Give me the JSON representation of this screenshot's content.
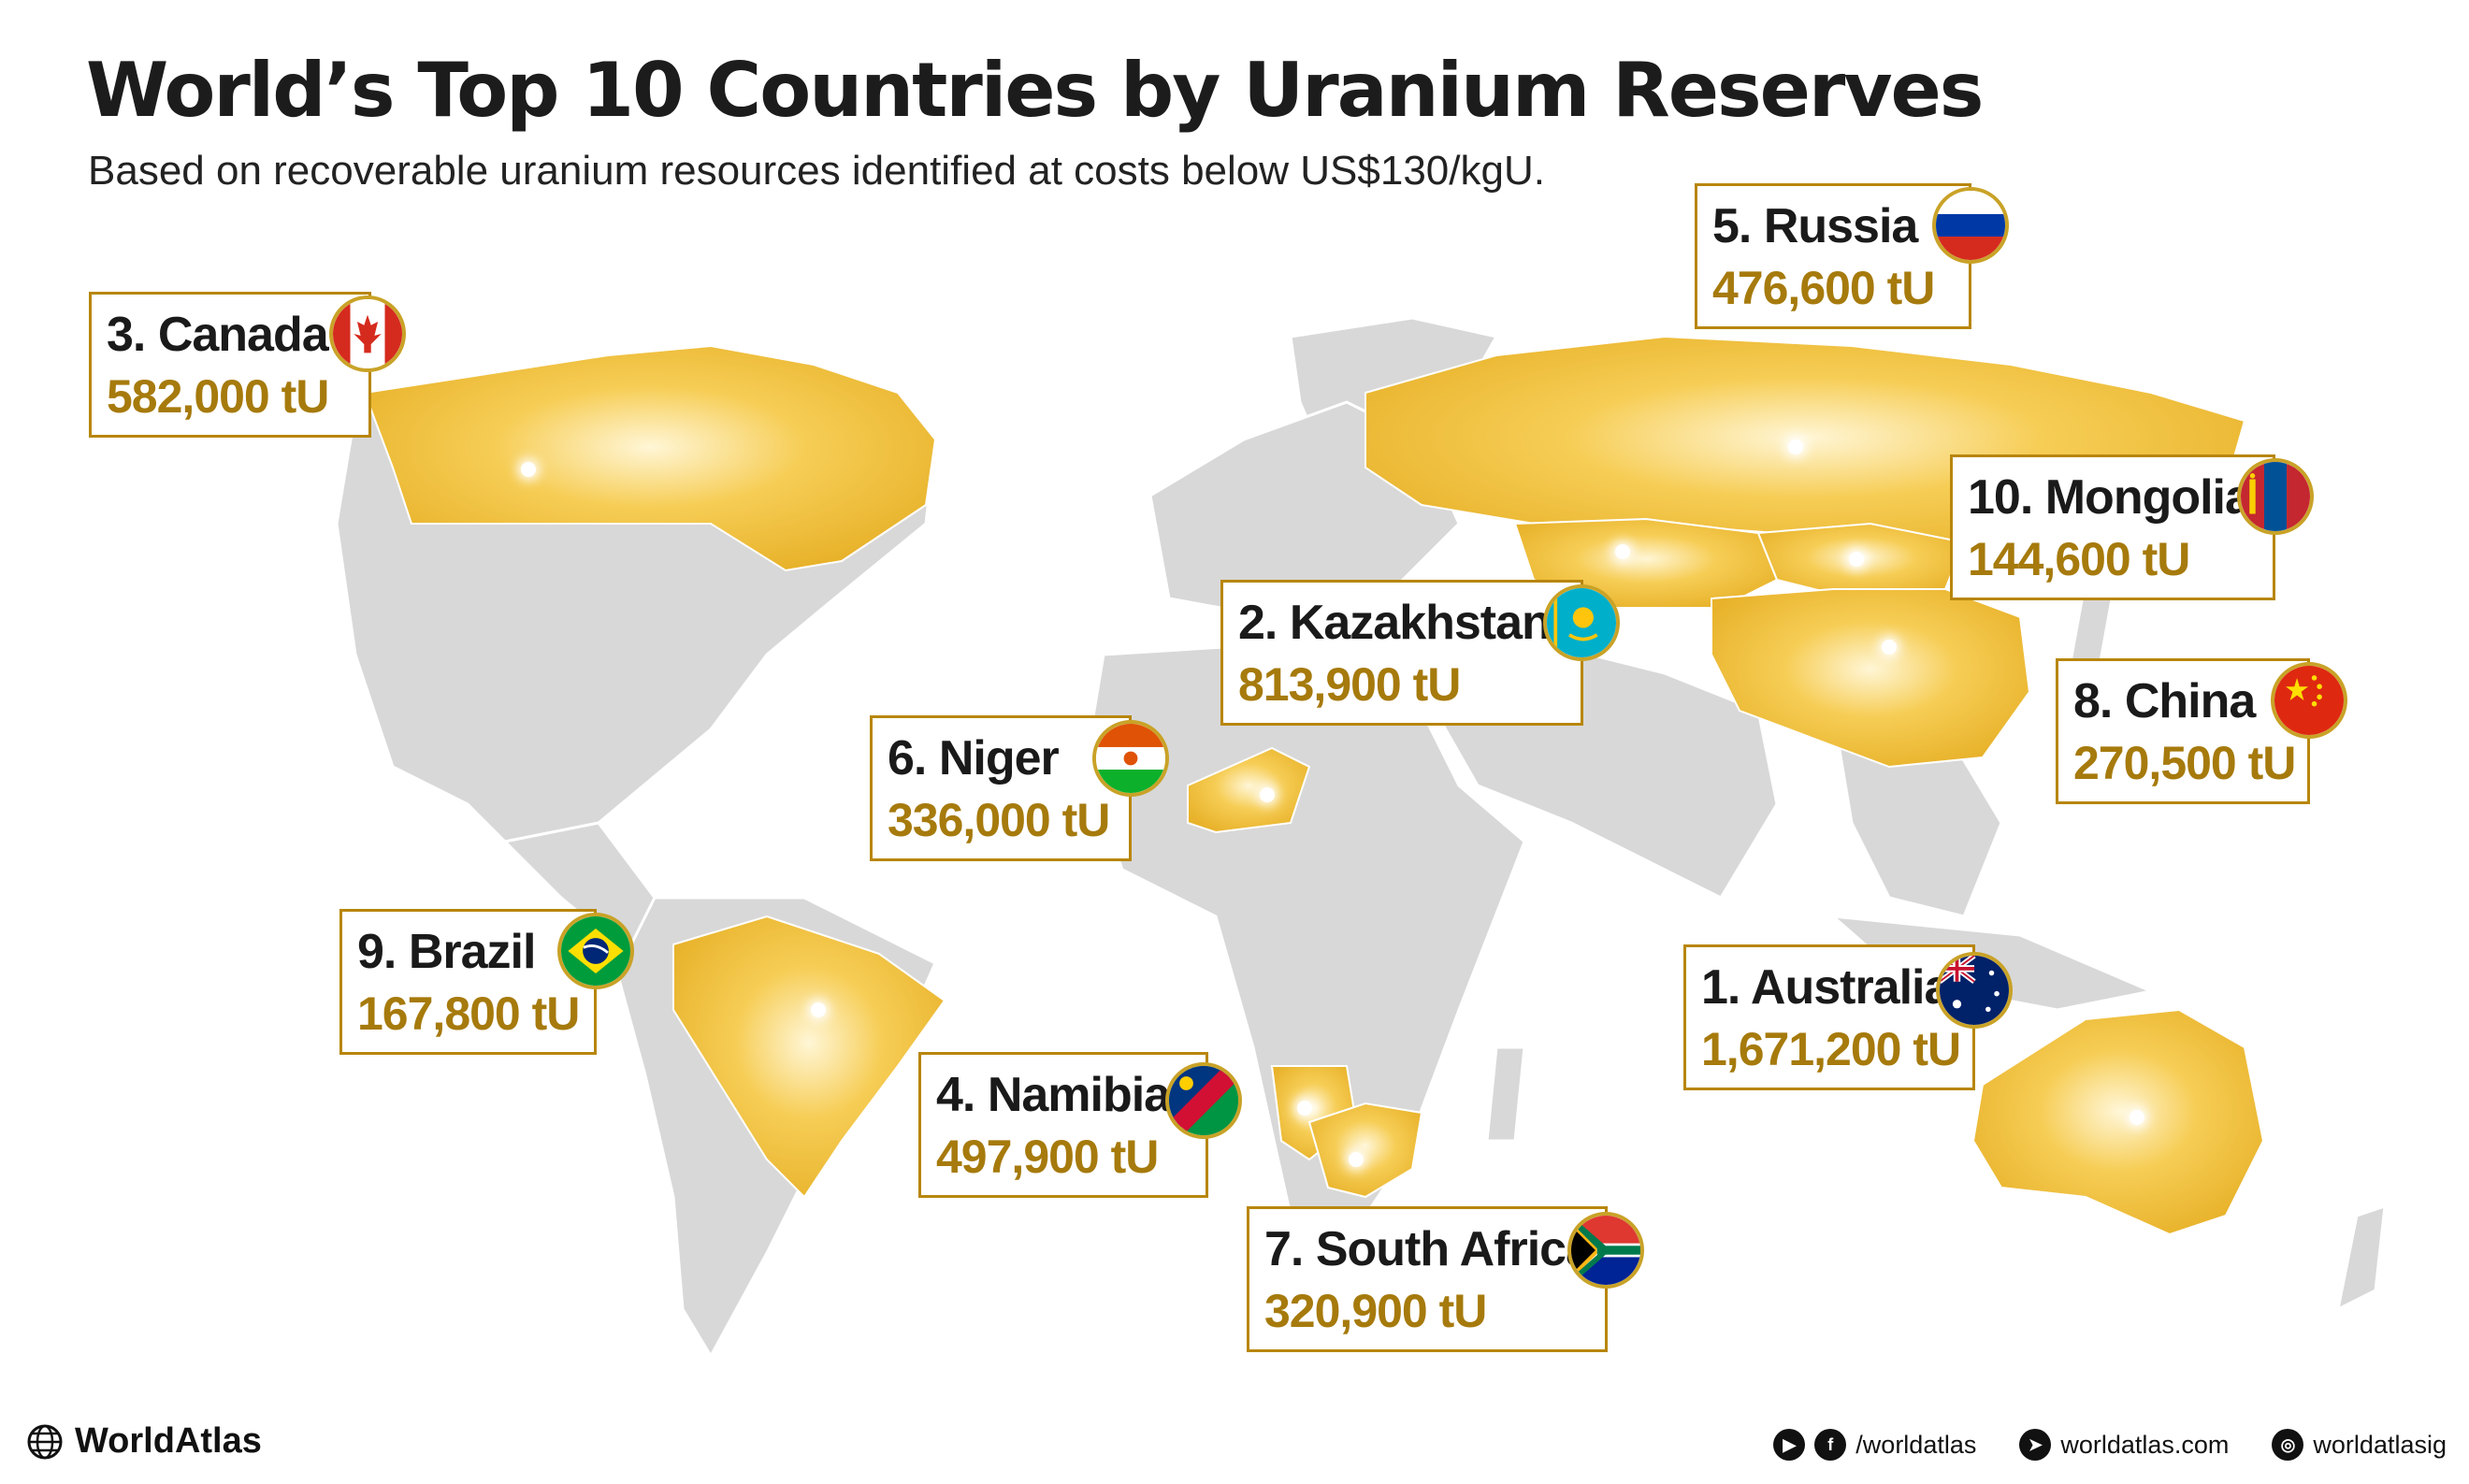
{
  "title": "World’s Top 10 Countries by Uranium Reserves",
  "subtitle": "Based on recoverable uranium resources identified at costs below US$130/kgU.",
  "colors": {
    "highlight": "#f2c23a",
    "land": "#d6d6d6",
    "label_value": "#a67a0c",
    "border": "#b8860b"
  },
  "countries": [
    {
      "rank_name": "1. Australia",
      "value": "1,671,200 tU",
      "flag": "australia-flag-icon"
    },
    {
      "rank_name": "2. Kazakhstan",
      "value": "813,900 tU",
      "flag": "kazakhstan-flag-icon"
    },
    {
      "rank_name": "3. Canada",
      "value": "582,000 tU",
      "flag": "canada-flag-icon"
    },
    {
      "rank_name": "4. Namibia",
      "value": "497,900 tU",
      "flag": "namibia-flag-icon"
    },
    {
      "rank_name": "5. Russia",
      "value": "476,600 tU",
      "flag": "russia-flag-icon"
    },
    {
      "rank_name": "6. Niger",
      "value": "336,000 tU",
      "flag": "niger-flag-icon"
    },
    {
      "rank_name": "7. South Africa",
      "value": "320,900 tU",
      "flag": "south-africa-flag-icon"
    },
    {
      "rank_name": "8. China",
      "value": "270,500 tU",
      "flag": "china-flag-icon"
    },
    {
      "rank_name": "9. Brazil",
      "value": "167,800 tU",
      "flag": "brazil-flag-icon"
    },
    {
      "rank_name": "10. Mongolia",
      "value": "144,600 tU",
      "flag": "mongolia-flag-icon"
    }
  ],
  "footer": {
    "brand": "WorldAtlas",
    "social_handle": "/worldatlas",
    "website": "worldatlas.com",
    "instagram": "worldatlasig"
  }
}
